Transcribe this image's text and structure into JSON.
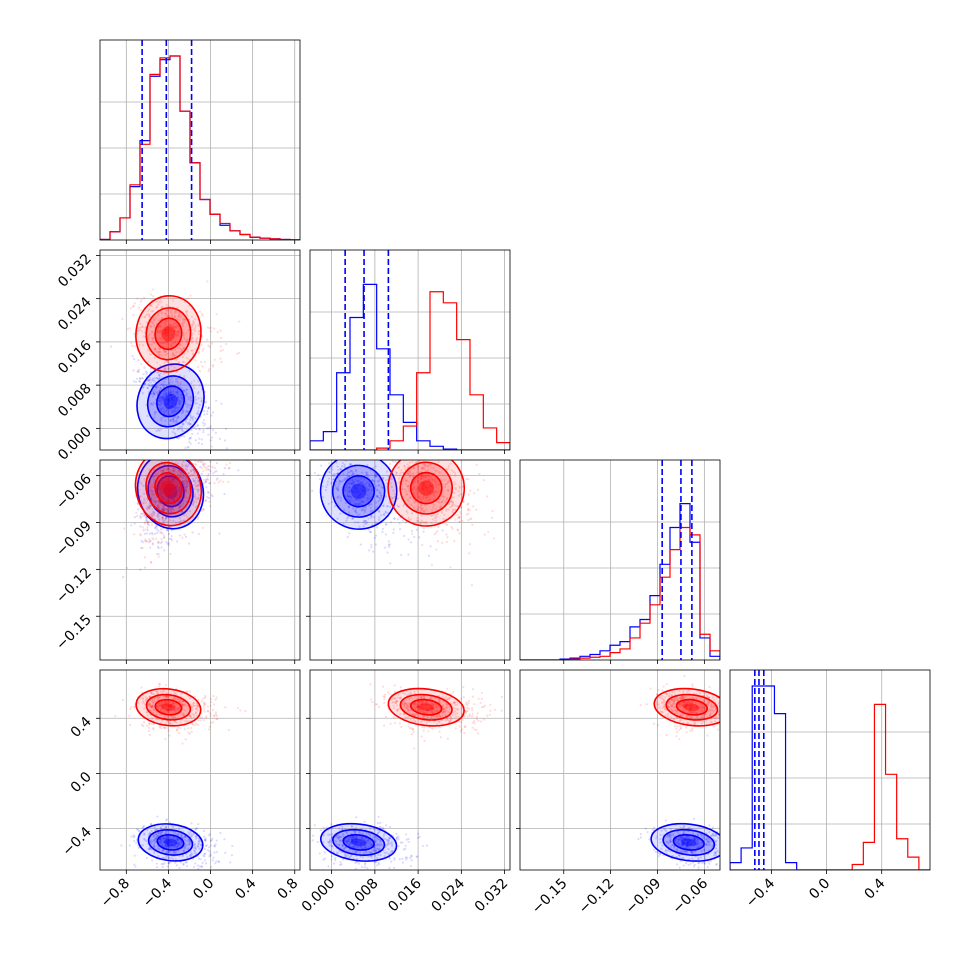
{
  "colors": {
    "series_a": "#ff0000",
    "series_b": "#0000ff",
    "grid": "#b0b0b0",
    "axes": "#000000"
  },
  "chart_data": {
    "type": "corner",
    "series": [
      {
        "color": "#0000ff",
        "hist1": [
          0.003,
          0.045,
          0.12,
          0.29,
          0.54,
          0.89,
          0.98,
          1.0,
          0.7,
          0.42,
          0.22,
          0.14,
          0.08,
          0.05,
          0.03,
          0.015,
          0.01,
          0.006,
          0.003,
          0.001
        ],
        "hist2": [
          0.05,
          0.1,
          0.42,
          0.72,
          0.9,
          0.55,
          0.3,
          0.15,
          0.05,
          0.02,
          0.005,
          0.0,
          0.0,
          0.0,
          0.0
        ],
        "hist3": [
          0.0,
          0.0,
          0.0,
          0.0,
          0.005,
          0.01,
          0.02,
          0.03,
          0.05,
          0.08,
          0.1,
          0.18,
          0.22,
          0.35,
          0.52,
          0.72,
          0.85,
          0.64,
          0.12,
          0.02
        ],
        "hist4": [
          0.04,
          0.12,
          1.0,
          1.0,
          0.85,
          0.04,
          0.0,
          0.0,
          0.0,
          0.0,
          0.0,
          0.0,
          0.0,
          0.0,
          0.0,
          0.0,
          0.0,
          0.0
        ],
        "quantiles1": [
          -0.65,
          -0.42,
          -0.18
        ],
        "quantiles2": [
          0.0025,
          0.006,
          0.0105
        ],
        "quantiles3": [
          -0.087,
          -0.075,
          -0.068
        ],
        "quantiles4": [
          -0.52,
          -0.49,
          -0.455
        ],
        "center": {
          "p1": -0.38,
          "p2": 0.005,
          "p3": -0.07,
          "p4": -0.5
        }
      },
      {
        "color": "#ff0000",
        "hist1": [
          0.003,
          0.045,
          0.12,
          0.3,
          0.52,
          0.9,
          0.99,
          1.0,
          0.7,
          0.42,
          0.22,
          0.14,
          0.09,
          0.05,
          0.03,
          0.015,
          0.01,
          0.006,
          0.003,
          0.001
        ],
        "hist2": [
          0.0,
          0.0,
          0.0,
          0.0,
          0.0,
          0.01,
          0.05,
          0.13,
          0.42,
          0.86,
          0.8,
          0.6,
          0.3,
          0.12,
          0.04
        ],
        "hist3": [
          0.0,
          0.0,
          0.0,
          0.0,
          0.0,
          0.005,
          0.01,
          0.015,
          0.02,
          0.04,
          0.06,
          0.12,
          0.2,
          0.3,
          0.45,
          0.6,
          0.72,
          0.68,
          0.14,
          0.05
        ],
        "hist4": [
          0.0,
          0.0,
          0.0,
          0.0,
          0.0,
          0.0,
          0.0,
          0.0,
          0.0,
          0.0,
          0.0,
          0.03,
          0.15,
          0.9,
          0.52,
          0.17,
          0.07,
          0.0
        ],
        "center": {
          "p1": -0.4,
          "p2": 0.0175,
          "p3": -0.068,
          "p4": 0.48
        }
      }
    ],
    "params": [
      {
        "range": [
          -1.05,
          0.85
        ],
        "ticks": [
          -0.8,
          -0.4,
          0.0,
          0.4,
          0.8
        ],
        "tick_labels": [
          "−0.8",
          "−0.4",
          "0.0",
          "0.4",
          "0.8"
        ]
      },
      {
        "range": [
          -0.004,
          0.033
        ],
        "ticks": [
          0.0,
          0.008,
          0.016,
          0.024,
          0.032
        ],
        "tick_labels": [
          "0.000",
          "0.008",
          "0.016",
          "0.024",
          "0.032"
        ]
      },
      {
        "range": [
          -0.178,
          -0.05
        ],
        "ticks": [
          -0.15,
          -0.12,
          -0.09,
          -0.06
        ],
        "tick_labels": [
          "−0.15",
          "−0.12",
          "−0.09",
          "−0.06"
        ]
      },
      {
        "range": [
          -0.7,
          0.75
        ],
        "ticks": [
          -0.4,
          0.0,
          0.4
        ],
        "tick_labels": [
          "−0.4",
          "0.0",
          "0.4"
        ]
      }
    ],
    "grid": true
  }
}
